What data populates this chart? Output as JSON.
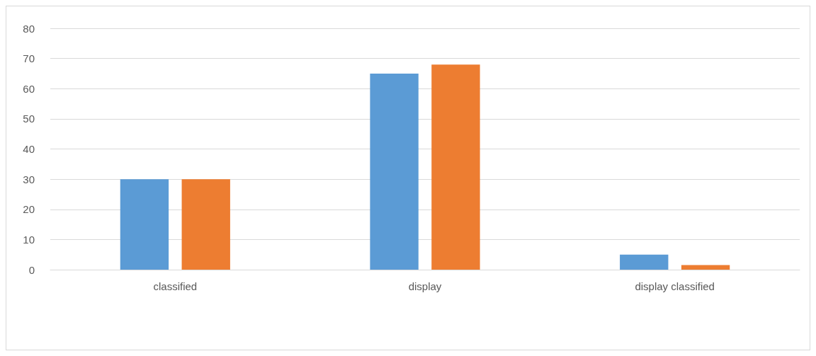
{
  "chart_data": {
    "type": "bar",
    "categories": [
      "classified",
      "display",
      "display classified"
    ],
    "series": [
      {
        "color": "#5b9bd5",
        "values": [
          30,
          65,
          5
        ]
      },
      {
        "color": "#ed7d31",
        "values": [
          30,
          68,
          1.5
        ]
      }
    ],
    "ylim": [
      0,
      80
    ],
    "yticks": [
      0,
      10,
      20,
      30,
      40,
      50,
      60,
      70,
      80
    ],
    "grid": "y"
  }
}
